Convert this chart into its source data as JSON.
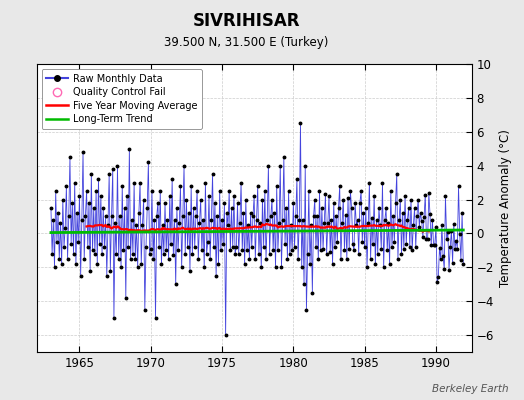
{
  "title": "SIVRIHISAR",
  "subtitle": "39.500 N, 31.500 E (Turkey)",
  "ylabel": "Temperature Anomaly (°C)",
  "watermark": "Berkeley Earth",
  "ylim": [
    -7,
    10
  ],
  "yticks": [
    -6,
    -4,
    -2,
    0,
    2,
    4,
    6,
    8,
    10
  ],
  "xlim": [
    1962.0,
    1992.5
  ],
  "xticks": [
    1965,
    1970,
    1975,
    1980,
    1985,
    1990
  ],
  "start_year": 1963,
  "end_year": 1991,
  "raw_line_color": "#4444dd",
  "raw_marker_color": "#000000",
  "moving_avg_color": "#ff0000",
  "trend_color": "#00bb00",
  "qc_fail_color": "#ff69b4",
  "background_color": "#e8e8e8",
  "plot_bg_color": "#ffffff",
  "legend_bg": "#ffffff",
  "raw_data": [
    1.5,
    -1.2,
    0.8,
    -2.0,
    2.5,
    -0.5,
    1.2,
    -1.5,
    0.6,
    -1.8,
    2.0,
    -0.8,
    0.3,
    2.8,
    -1.5,
    1.0,
    4.5,
    -0.6,
    1.8,
    -1.2,
    3.0,
    -1.8,
    1.2,
    -0.5,
    2.2,
    -2.5,
    0.8,
    4.8,
    -1.5,
    1.0,
    2.5,
    -0.8,
    1.8,
    -2.2,
    3.5,
    -1.0,
    1.5,
    -1.2,
    2.5,
    -1.8,
    3.2,
    -0.6,
    2.2,
    -1.2,
    1.5,
    -0.8,
    1.0,
    -2.5,
    0.5,
    3.5,
    -2.2,
    1.0,
    3.8,
    -5.0,
    0.6,
    -1.2,
    4.0,
    -1.5,
    1.0,
    -2.0,
    2.8,
    -1.0,
    1.5,
    -3.8,
    2.2,
    -0.8,
    5.0,
    -1.5,
    0.8,
    -1.2,
    3.0,
    -1.5,
    0.5,
    -2.0,
    1.2,
    3.0,
    -1.8,
    0.5,
    2.0,
    -4.5,
    -0.8,
    1.5,
    4.2,
    -1.2,
    -0.9,
    2.5,
    -1.5,
    0.8,
    -5.0,
    1.0,
    1.8,
    -0.8,
    2.5,
    -1.8,
    0.5,
    -1.2,
    1.8,
    -1.0,
    0.8,
    -1.5,
    2.2,
    -0.6,
    3.2,
    -1.3,
    0.8,
    -3.0,
    1.5,
    -1.0,
    0.6,
    2.8,
    -2.0,
    1.0,
    4.0,
    -1.2,
    2.0,
    -0.8,
    1.2,
    -2.2,
    2.8,
    -1.2,
    1.5,
    -0.8,
    1.0,
    2.5,
    -1.5,
    0.6,
    2.0,
    -1.0,
    0.8,
    -2.0,
    3.0,
    -1.2,
    -0.5,
    2.2,
    -1.5,
    0.8,
    3.5,
    -0.8,
    1.8,
    -2.5,
    1.0,
    -1.8,
    2.5,
    -1.0,
    0.8,
    -0.6,
    1.8,
    -6.0,
    1.2,
    0.5,
    2.5,
    -1.0,
    1.5,
    -0.8,
    2.2,
    -1.2,
    -0.8,
    1.8,
    -1.2,
    0.6,
    3.0,
    -1.0,
    1.2,
    -1.8,
    2.0,
    -1.0,
    0.5,
    -1.5,
    1.2,
    -0.8,
    1.0,
    2.2,
    -1.5,
    0.8,
    2.8,
    -1.2,
    0.6,
    -2.0,
    2.0,
    -0.8,
    2.5,
    -1.5,
    0.8,
    4.0,
    -1.2,
    1.0,
    2.0,
    -1.0,
    1.2,
    -2.0,
    2.8,
    -1.0,
    0.6,
    4.0,
    -2.0,
    0.8,
    4.5,
    -0.6,
    1.5,
    -1.5,
    2.5,
    -1.2,
    0.5,
    -1.0,
    1.8,
    -0.8,
    1.0,
    3.2,
    -1.5,
    0.8,
    6.5,
    -2.0,
    0.8,
    -3.0,
    4.0,
    -4.5,
    -1.2,
    2.5,
    -1.8,
    0.5,
    -3.5,
    1.0,
    2.0,
    -0.8,
    1.0,
    -1.5,
    2.5,
    -1.0,
    1.5,
    -0.9,
    0.6,
    2.3,
    -1.2,
    0.6,
    2.2,
    -1.1,
    0.8,
    -1.8,
    1.8,
    -0.8,
    1.0,
    -0.5,
    1.5,
    2.8,
    -1.5,
    0.6,
    2.0,
    -1.0,
    1.1,
    -1.5,
    2.1,
    -0.9,
    2.5,
    1.5,
    -0.6,
    -1.0,
    1.8,
    0.5,
    0.8,
    -1.2,
    1.8,
    2.5,
    -0.5,
    1.2,
    -0.8,
    1.5,
    -2.0,
    0.6,
    3.0,
    -1.5,
    0.9,
    -0.6,
    2.2,
    -1.8,
    0.8,
    -1.2,
    1.5,
    0.5,
    -0.9,
    3.0,
    -2.0,
    0.8,
    1.5,
    -1.0,
    0.6,
    -1.8,
    2.5,
    -0.8,
    1.0,
    -0.5,
    1.8,
    3.5,
    -1.5,
    0.8,
    2.0,
    -1.2,
    1.2,
    -0.9,
    2.2,
    -0.6,
    0.8,
    1.5,
    -0.8,
    2.0,
    -1.0,
    0.5,
    1.5,
    -0.8,
    1.0,
    2.0,
    0.4,
    1.2
  ],
  "trend_slope": 0.0,
  "trend_intercept": 0.1
}
